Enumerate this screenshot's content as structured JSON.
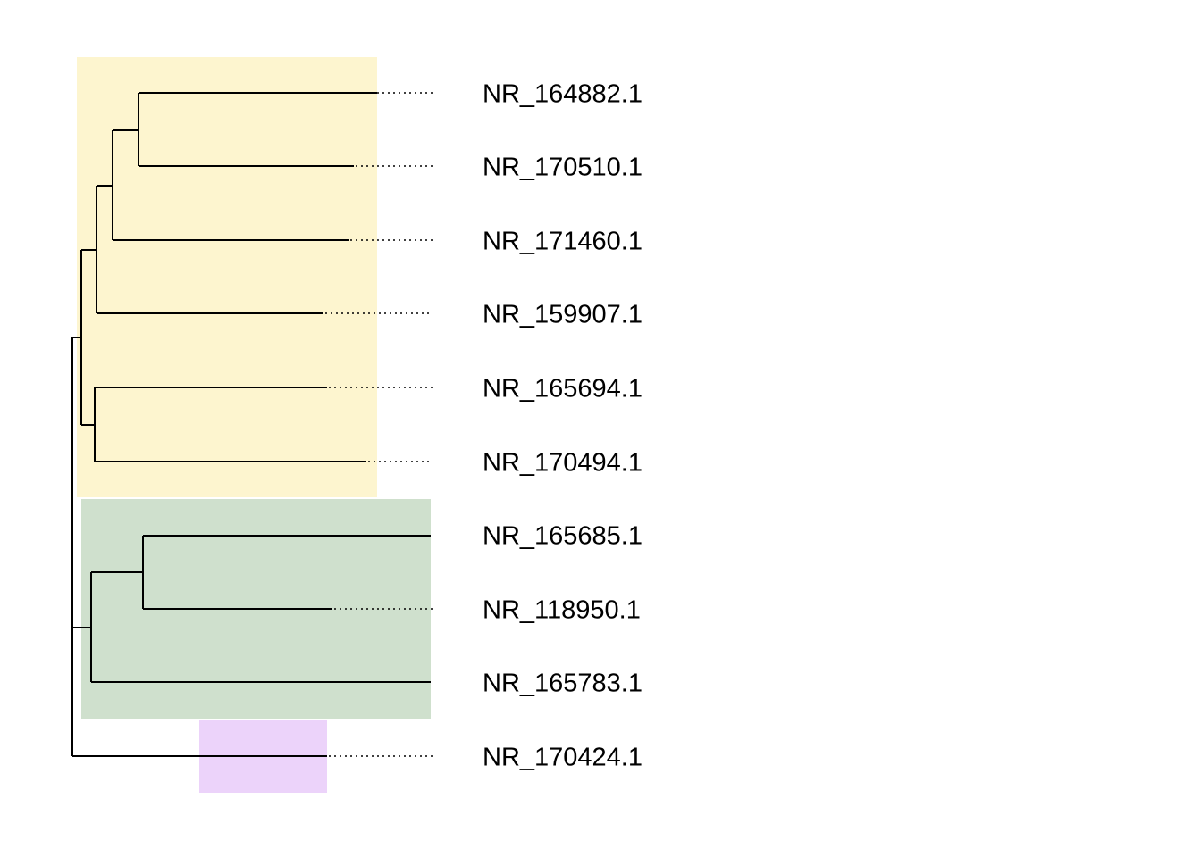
{
  "tree": {
    "tips": [
      "NR_164882.1",
      "NR_170510.1",
      "NR_171460.1",
      "NR_159907.1",
      "NR_165694.1",
      "NR_170494.1",
      "NR_165685.1",
      "NR_118950.1",
      "NR_165783.1",
      "NR_170424.1"
    ],
    "clade_colors": {
      "yellow": "#fdf5cf",
      "green": "#cfe0cd",
      "purple": "#ecd3fa"
    },
    "branch_color": "#000000",
    "background": "#ffffff"
  }
}
